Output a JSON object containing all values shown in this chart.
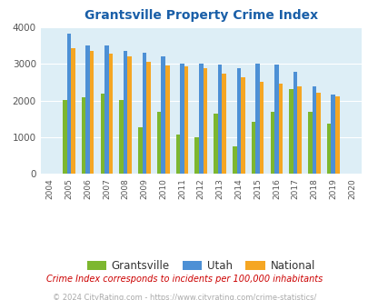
{
  "title": "Grantsville Property Crime Index",
  "years": [
    2004,
    2005,
    2006,
    2007,
    2008,
    2009,
    2010,
    2011,
    2012,
    2013,
    2014,
    2015,
    2016,
    2017,
    2018,
    2019,
    2020
  ],
  "grantsville": [
    0,
    2020,
    2080,
    2190,
    2020,
    1260,
    1700,
    1080,
    1010,
    1650,
    760,
    1420,
    1700,
    2320,
    1700,
    1360,
    0
  ],
  "utah": [
    0,
    3830,
    3510,
    3490,
    3360,
    3290,
    3210,
    3010,
    3010,
    2990,
    2890,
    3010,
    2990,
    2780,
    2390,
    2150,
    0
  ],
  "national": [
    0,
    3430,
    3360,
    3280,
    3210,
    3050,
    2950,
    2940,
    2870,
    2730,
    2620,
    2500,
    2460,
    2390,
    2200,
    2120,
    0
  ],
  "grantsville_color": "#7db72f",
  "utah_color": "#4d90d5",
  "national_color": "#f5a623",
  "bg_color": "#ddeef6",
  "ylim": [
    0,
    4000
  ],
  "ylabel_step": 1000,
  "subtitle": "Crime Index corresponds to incidents per 100,000 inhabitants",
  "footer": "© 2024 CityRating.com - https://www.cityrating.com/crime-statistics/",
  "title_color": "#1a5fa8",
  "subtitle_color": "#cc0000",
  "footer_color": "#aaaaaa"
}
